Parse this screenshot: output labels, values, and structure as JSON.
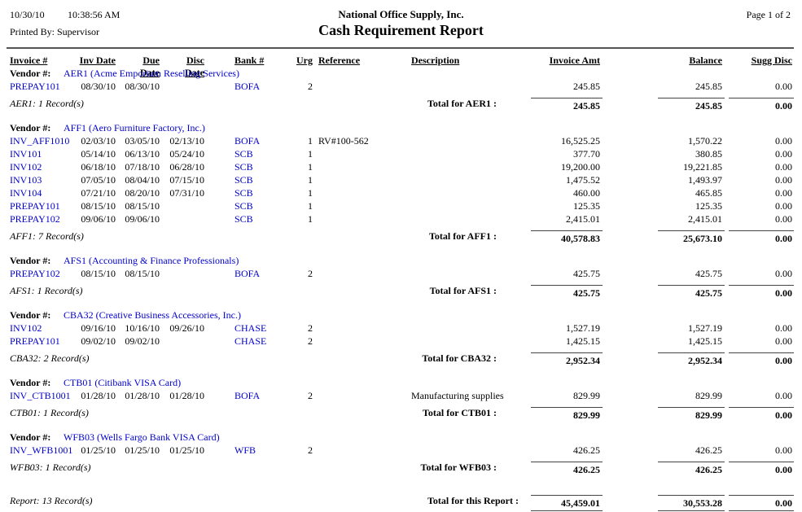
{
  "header": {
    "date": "10/30/10",
    "time": "10:38:56 AM",
    "printed_by": "Printed By: Supervisor",
    "company": "National Office Supply, Inc.",
    "title": "Cash Requirement Report",
    "page": "Page 1 of 2"
  },
  "columns": [
    "Invoice #",
    "Inv Date",
    "Due Date",
    "Disc Date",
    "Bank #",
    "Urg",
    "Reference",
    "Description",
    "Invoice Amt",
    "Balance",
    "Sugg Disc"
  ],
  "colors": {
    "link": "#0000CC",
    "text": "#000000",
    "rule": "#555555"
  },
  "sections": [
    {
      "vendor_label": "Vendor #:",
      "vendor": "AER1 (Acme Emporium Reselling Services)",
      "rows": [
        {
          "invoice": "PREPAY101",
          "inv_date": "08/30/10",
          "due_date": "08/30/10",
          "disc_date": "",
          "bank": "BOFA",
          "urg": "2",
          "reference": "",
          "description": "",
          "invoice_amt": "245.85",
          "balance": "245.85",
          "sugg_disc": "0.00"
        }
      ],
      "record_label": "AER1: 1 Record(s)",
      "total_label": "Total for AER1 :",
      "total": {
        "invoice_amt": "245.85",
        "balance": "245.85",
        "sugg_disc": "0.00"
      }
    },
    {
      "vendor_label": "Vendor #:",
      "vendor": "AFF1 (Aero Furniture Factory, Inc.)",
      "rows": [
        {
          "invoice": "INV_AFF1010",
          "inv_date": "02/03/10",
          "due_date": "03/05/10",
          "disc_date": "02/13/10",
          "bank": "BOFA",
          "urg": "1",
          "reference": "RV#100-562",
          "description": "",
          "invoice_amt": "16,525.25",
          "balance": "1,570.22",
          "sugg_disc": "0.00"
        },
        {
          "invoice": "INV101",
          "inv_date": "05/14/10",
          "due_date": "06/13/10",
          "disc_date": "05/24/10",
          "bank": "SCB",
          "urg": "1",
          "reference": "",
          "description": "",
          "invoice_amt": "377.70",
          "balance": "380.85",
          "sugg_disc": "0.00"
        },
        {
          "invoice": "INV102",
          "inv_date": "06/18/10",
          "due_date": "07/18/10",
          "disc_date": "06/28/10",
          "bank": "SCB",
          "urg": "1",
          "reference": "",
          "description": "",
          "invoice_amt": "19,200.00",
          "balance": "19,221.85",
          "sugg_disc": "0.00"
        },
        {
          "invoice": "INV103",
          "inv_date": "07/05/10",
          "due_date": "08/04/10",
          "disc_date": "07/15/10",
          "bank": "SCB",
          "urg": "1",
          "reference": "",
          "description": "",
          "invoice_amt": "1,475.52",
          "balance": "1,493.97",
          "sugg_disc": "0.00"
        },
        {
          "invoice": "INV104",
          "inv_date": "07/21/10",
          "due_date": "08/20/10",
          "disc_date": "07/31/10",
          "bank": "SCB",
          "urg": "1",
          "reference": "",
          "description": "",
          "invoice_amt": "460.00",
          "balance": "465.85",
          "sugg_disc": "0.00"
        },
        {
          "invoice": "PREPAY101",
          "inv_date": "08/15/10",
          "due_date": "08/15/10",
          "disc_date": "",
          "bank": "SCB",
          "urg": "1",
          "reference": "",
          "description": "",
          "invoice_amt": "125.35",
          "balance": "125.35",
          "sugg_disc": "0.00"
        },
        {
          "invoice": "PREPAY102",
          "inv_date": "09/06/10",
          "due_date": "09/06/10",
          "disc_date": "",
          "bank": "SCB",
          "urg": "1",
          "reference": "",
          "description": "",
          "invoice_amt": "2,415.01",
          "balance": "2,415.01",
          "sugg_disc": "0.00"
        }
      ],
      "record_label": "AFF1: 7 Record(s)",
      "total_label": "Total for AFF1 :",
      "total": {
        "invoice_amt": "40,578.83",
        "balance": "25,673.10",
        "sugg_disc": "0.00"
      }
    },
    {
      "vendor_label": "Vendor #:",
      "vendor": "AFS1 (Accounting & Finance Professionals)",
      "rows": [
        {
          "invoice": "PREPAY102",
          "inv_date": "08/15/10",
          "due_date": "08/15/10",
          "disc_date": "",
          "bank": "BOFA",
          "urg": "2",
          "reference": "",
          "description": "",
          "invoice_amt": "425.75",
          "balance": "425.75",
          "sugg_disc": "0.00"
        }
      ],
      "record_label": "AFS1: 1 Record(s)",
      "total_label": "Total for AFS1 :",
      "total": {
        "invoice_amt": "425.75",
        "balance": "425.75",
        "sugg_disc": "0.00"
      }
    },
    {
      "vendor_label": "Vendor #:",
      "vendor": "CBA32 (Creative Business Accessories, Inc.)",
      "rows": [
        {
          "invoice": "INV102",
          "inv_date": "09/16/10",
          "due_date": "10/16/10",
          "disc_date": "09/26/10",
          "bank": "CHASE",
          "urg": "2",
          "reference": "",
          "description": "",
          "invoice_amt": "1,527.19",
          "balance": "1,527.19",
          "sugg_disc": "0.00"
        },
        {
          "invoice": "PREPAY101",
          "inv_date": "09/02/10",
          "due_date": "09/02/10",
          "disc_date": "",
          "bank": "CHASE",
          "urg": "2",
          "reference": "",
          "description": "",
          "invoice_amt": "1,425.15",
          "balance": "1,425.15",
          "sugg_disc": "0.00"
        }
      ],
      "record_label": "CBA32: 2 Record(s)",
      "total_label": "Total for CBA32 :",
      "total": {
        "invoice_amt": "2,952.34",
        "balance": "2,952.34",
        "sugg_disc": "0.00"
      }
    },
    {
      "vendor_label": "Vendor #:",
      "vendor": "CTB01 (Citibank VISA Card)",
      "rows": [
        {
          "invoice": "INV_CTB1001",
          "inv_date": "01/28/10",
          "due_date": "01/28/10",
          "disc_date": "01/28/10",
          "bank": "BOFA",
          "urg": "2",
          "reference": "",
          "description": "Manufacturing supplies",
          "invoice_amt": "829.99",
          "balance": "829.99",
          "sugg_disc": "0.00"
        }
      ],
      "record_label": "CTB01: 1 Record(s)",
      "total_label": "Total for CTB01 :",
      "total": {
        "invoice_amt": "829.99",
        "balance": "829.99",
        "sugg_disc": "0.00"
      }
    },
    {
      "vendor_label": "Vendor #:",
      "vendor": "WFB03 (Wells Fargo Bank VISA Card)",
      "rows": [
        {
          "invoice": "INV_WFB1001",
          "inv_date": "01/25/10",
          "due_date": "01/25/10",
          "disc_date": "01/25/10",
          "bank": "WFB",
          "urg": "2",
          "reference": "",
          "description": "",
          "invoice_amt": "426.25",
          "balance": "426.25",
          "sugg_disc": "0.00"
        }
      ],
      "record_label": "WFB03: 1 Record(s)",
      "total_label": "Total for WFB03 :",
      "total": {
        "invoice_amt": "426.25",
        "balance": "426.25",
        "sugg_disc": "0.00"
      }
    }
  ],
  "report": {
    "record_label": "Report: 13 Record(s)",
    "total_label": "Total for this Report :",
    "total": {
      "invoice_amt": "45,459.01",
      "balance": "30,553.28",
      "sugg_disc": "0.00"
    }
  }
}
